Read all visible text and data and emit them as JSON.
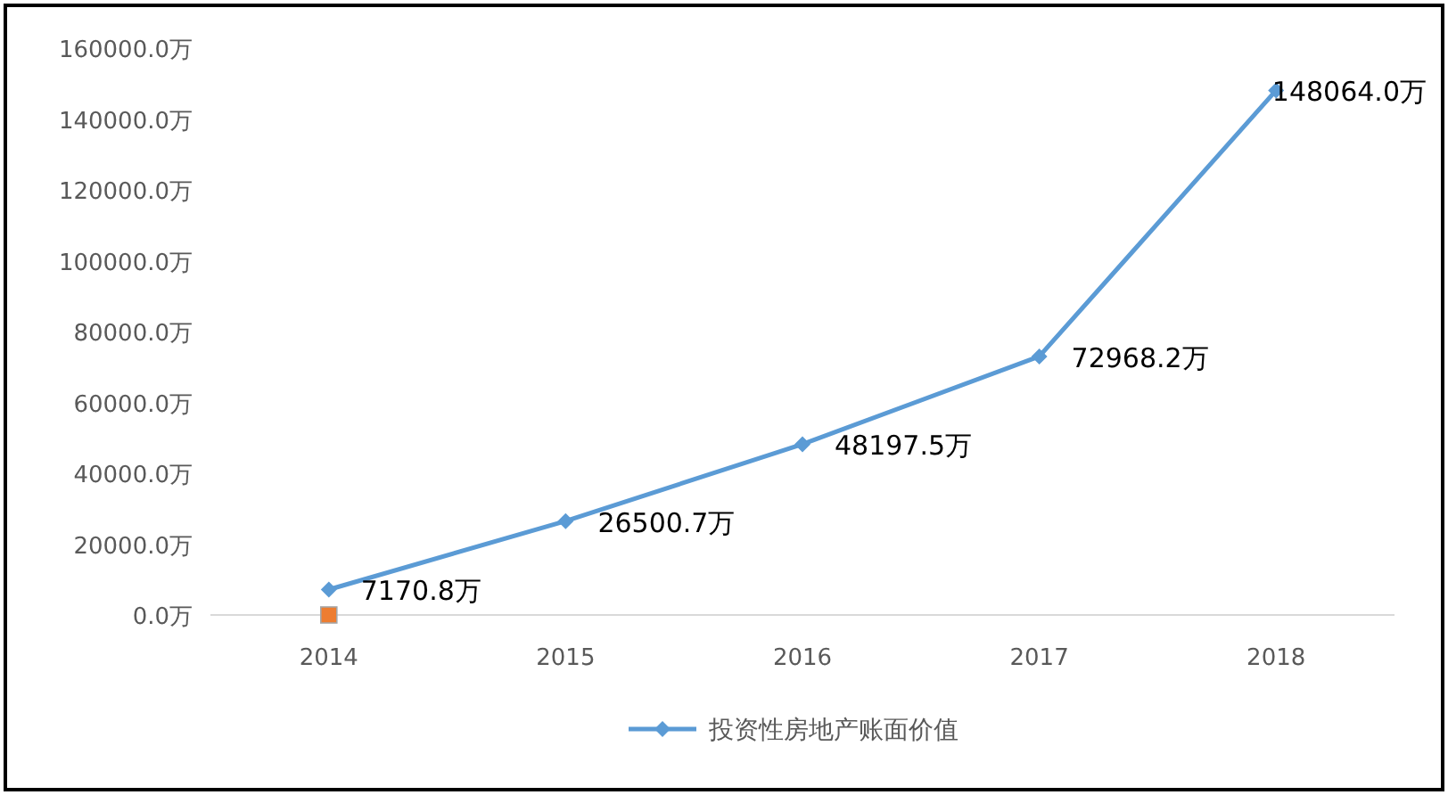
{
  "chart_data": {
    "type": "line",
    "categories": [
      "2014",
      "2015",
      "2016",
      "2017",
      "2018"
    ],
    "series": [
      {
        "name": "投资性房地产账面价值",
        "color": "#5b9bd5",
        "values": [
          7170.8,
          26500.7,
          48197.5,
          72968.2,
          148064.0
        ],
        "value_labels": [
          "7170.8万",
          "26500.7万",
          "48197.5万",
          "72968.2万",
          "148064.0万"
        ]
      },
      {
        "type": "scatter",
        "color": "#ed7d31",
        "marker": "square",
        "values": [
          0,
          null,
          null,
          null,
          null
        ]
      }
    ],
    "marker": "diamond",
    "legend": "bottom",
    "ylim": [
      0,
      160000
    ],
    "yticks": [
      {
        "value": 0,
        "label": "0.0万"
      },
      {
        "value": 20000,
        "label": "20000.0万"
      },
      {
        "value": 40000,
        "label": "40000.0万"
      },
      {
        "value": 60000,
        "label": "60000.0万"
      },
      {
        "value": 80000,
        "label": "80000.0万"
      },
      {
        "value": 100000,
        "label": "100000.0万"
      },
      {
        "value": 120000,
        "label": "120000.0万"
      },
      {
        "value": 140000,
        "label": "140000.0万"
      },
      {
        "value": 160000,
        "label": "160000.0万"
      }
    ]
  }
}
